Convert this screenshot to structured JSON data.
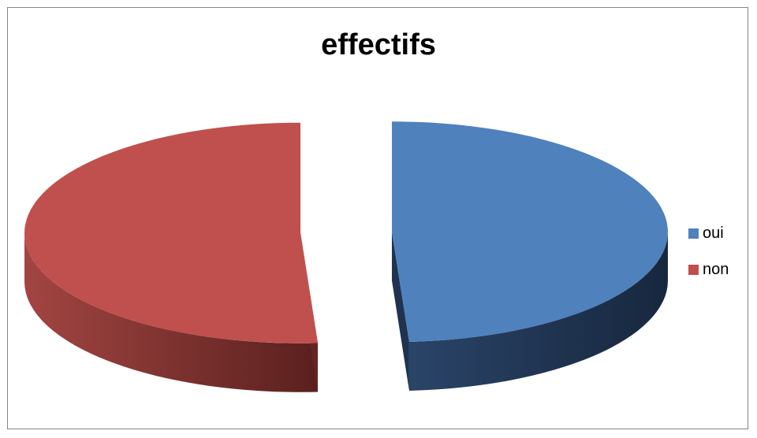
{
  "chart_data": {
    "type": "pie",
    "title": "effectifs",
    "categories": [
      "oui",
      "non"
    ],
    "values": [
      49,
      51
    ],
    "colors": [
      "#4F81BD",
      "#C0504D"
    ],
    "side_colors": [
      "#1F3350",
      "#652623"
    ],
    "legend_position": "right",
    "exploded": true,
    "style": "3d"
  }
}
